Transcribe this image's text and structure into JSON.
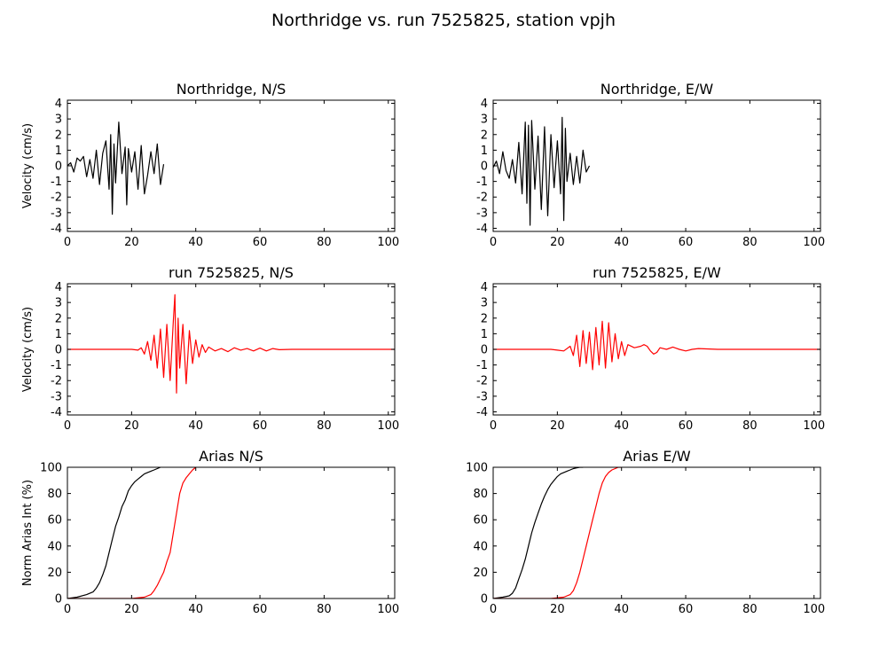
{
  "figure": {
    "title": "Northridge vs. run 7525825, station vpjh"
  },
  "colors": {
    "observed": "#000000",
    "simulated": "#ff0000"
  },
  "chart_data": [
    {
      "type": "line",
      "title": "Northridge, N/S",
      "xlabel": "",
      "ylabel": "Velocity (cm/s)",
      "xlim": [
        0,
        102
      ],
      "ylim": [
        -4.2,
        4.2
      ],
      "xticks": [
        0,
        20,
        40,
        60,
        80,
        100
      ],
      "yticks": [
        -4,
        -3,
        -2,
        -1,
        0,
        1,
        2,
        3,
        4
      ],
      "series": [
        {
          "color": "#000000",
          "x": [
            0,
            1,
            2,
            3,
            4,
            5,
            6,
            7,
            8,
            9,
            10,
            11,
            12,
            13,
            13.5,
            14,
            14.5,
            15,
            16,
            17,
            18,
            18.5,
            19,
            20,
            21,
            22,
            23,
            24,
            25,
            26,
            27,
            28,
            29,
            30
          ],
          "y": [
            0.0,
            0.2,
            -0.4,
            0.5,
            0.3,
            0.6,
            -0.7,
            0.4,
            -0.8,
            1.0,
            -1.2,
            0.8,
            1.6,
            -1.5,
            2.0,
            -3.1,
            1.4,
            -1.1,
            2.8,
            -0.5,
            1.2,
            -2.5,
            1.1,
            -0.4,
            0.9,
            -1.5,
            1.3,
            -1.8,
            -0.6,
            0.9,
            -0.5,
            1.4,
            -1.2,
            0.1
          ]
        }
      ]
    },
    {
      "type": "line",
      "title": "Northridge, E/W",
      "xlabel": "",
      "ylabel": "",
      "xlim": [
        0,
        102
      ],
      "ylim": [
        -4.2,
        4.2
      ],
      "xticks": [
        0,
        20,
        40,
        60,
        80,
        100
      ],
      "yticks": [
        -4,
        -3,
        -2,
        -1,
        0,
        1,
        2,
        3,
        4
      ],
      "series": [
        {
          "color": "#000000",
          "x": [
            0,
            1,
            2,
            3,
            4,
            5,
            6,
            7,
            8,
            9,
            10,
            10.5,
            11,
            11.5,
            12,
            13,
            14,
            15,
            16,
            17,
            18,
            19,
            20,
            21,
            21.5,
            22,
            22.5,
            23,
            24,
            25,
            26,
            27,
            28,
            29,
            30
          ],
          "y": [
            -0.1,
            0.3,
            -0.5,
            0.9,
            -0.3,
            -0.8,
            0.4,
            -1.1,
            1.5,
            -1.8,
            2.8,
            -2.4,
            2.6,
            -3.8,
            2.9,
            -1.5,
            1.9,
            -2.8,
            2.5,
            -3.2,
            2.0,
            -1.4,
            1.6,
            -1.8,
            3.1,
            -3.5,
            2.4,
            -1.0,
            0.8,
            -1.2,
            0.6,
            -1.1,
            1.0,
            -0.4,
            0.0
          ]
        }
      ]
    },
    {
      "type": "line",
      "title": "run 7525825, N/S",
      "xlabel": "",
      "ylabel": "Velocity (cm/s)",
      "xlim": [
        0,
        102
      ],
      "ylim": [
        -4.2,
        4.2
      ],
      "xticks": [
        0,
        20,
        40,
        60,
        80,
        100
      ],
      "yticks": [
        -4,
        -3,
        -2,
        -1,
        0,
        1,
        2,
        3,
        4
      ],
      "series": [
        {
          "color": "#ff0000",
          "x": [
            0,
            20,
            22,
            23,
            24,
            25,
            26,
            27,
            28,
            29,
            30,
            31,
            32,
            33,
            33.5,
            34,
            34.5,
            35,
            36,
            37,
            38,
            39,
            40,
            41,
            42,
            43,
            44,
            46,
            48,
            50,
            52,
            54,
            56,
            58,
            60,
            62,
            64,
            66,
            70,
            102
          ],
          "y": [
            0.0,
            0.0,
            -0.05,
            0.1,
            -0.3,
            0.5,
            -0.7,
            0.9,
            -1.2,
            1.3,
            -1.8,
            1.6,
            -2.0,
            1.8,
            3.5,
            -2.8,
            2.0,
            -1.2,
            1.6,
            -2.2,
            1.2,
            -0.9,
            0.6,
            -0.5,
            0.3,
            -0.2,
            0.15,
            -0.1,
            0.05,
            -0.15,
            0.1,
            -0.05,
            0.05,
            -0.1,
            0.08,
            -0.1,
            0.05,
            -0.02,
            0.0,
            0.0
          ]
        }
      ]
    },
    {
      "type": "line",
      "title": "run 7525825, E/W",
      "xlabel": "",
      "ylabel": "",
      "xlim": [
        0,
        102
      ],
      "ylim": [
        -4.2,
        4.2
      ],
      "xticks": [
        0,
        20,
        40,
        60,
        80,
        100
      ],
      "yticks": [
        -4,
        -3,
        -2,
        -1,
        0,
        1,
        2,
        3,
        4
      ],
      "series": [
        {
          "color": "#ff0000",
          "x": [
            0,
            18,
            20,
            22,
            24,
            25,
            26,
            27,
            28,
            29,
            30,
            31,
            32,
            33,
            34,
            35,
            36,
            37,
            38,
            39,
            40,
            41,
            42,
            44,
            46,
            47,
            48,
            49,
            50,
            51,
            52,
            54,
            56,
            58,
            60,
            62,
            64,
            70,
            102
          ],
          "y": [
            0.0,
            0.0,
            -0.05,
            -0.1,
            0.2,
            -0.4,
            0.9,
            -1.1,
            1.2,
            -0.9,
            1.1,
            -1.3,
            1.4,
            -1.0,
            1.8,
            -1.2,
            1.7,
            -0.8,
            1.0,
            -0.6,
            0.5,
            -0.4,
            0.3,
            0.1,
            0.2,
            0.3,
            0.2,
            -0.1,
            -0.3,
            -0.2,
            0.1,
            0.0,
            0.15,
            0.0,
            -0.1,
            0.0,
            0.05,
            0.0,
            0.0
          ]
        }
      ]
    },
    {
      "type": "line",
      "title": "Arias N/S",
      "xlabel": "",
      "ylabel": "Norm Arias Int (%)",
      "xlim": [
        0,
        102
      ],
      "ylim": [
        0,
        100
      ],
      "xticks": [
        0,
        20,
        40,
        60,
        80,
        100
      ],
      "yticks": [
        0,
        20,
        40,
        60,
        80,
        100
      ],
      "series": [
        {
          "color": "#000000",
          "x": [
            0,
            3,
            6,
            8,
            9,
            10,
            11,
            12,
            13,
            14,
            15,
            16,
            17,
            18,
            19,
            20,
            21,
            22,
            23,
            24,
            25,
            26,
            27,
            28,
            29
          ],
          "y": [
            0,
            1,
            3,
            5,
            8,
            12,
            18,
            25,
            35,
            45,
            55,
            62,
            70,
            75,
            82,
            86,
            89,
            91,
            93,
            95,
            96,
            97,
            98,
            99,
            100
          ]
        },
        {
          "color": "#ff0000",
          "x": [
            0,
            20,
            24,
            26,
            27,
            28,
            29,
            30,
            31,
            32,
            33,
            34,
            35,
            36,
            37,
            38,
            39,
            40
          ],
          "y": [
            0,
            0,
            1,
            3,
            6,
            10,
            15,
            20,
            28,
            35,
            50,
            65,
            80,
            88,
            92,
            95,
            98,
            100
          ]
        }
      ]
    },
    {
      "type": "line",
      "title": "Arias E/W",
      "xlabel": "",
      "ylabel": "",
      "xlim": [
        0,
        102
      ],
      "ylim": [
        0,
        100
      ],
      "xticks": [
        0,
        20,
        40,
        60,
        80,
        100
      ],
      "yticks": [
        0,
        20,
        40,
        60,
        80,
        100
      ],
      "series": [
        {
          "color": "#000000",
          "x": [
            0,
            3,
            5,
            6,
            7,
            8,
            9,
            10,
            11,
            12,
            13,
            14,
            15,
            16,
            17,
            18,
            19,
            20,
            21,
            22,
            23,
            24,
            25,
            26,
            27,
            28
          ],
          "y": [
            0,
            1,
            2,
            4,
            8,
            15,
            22,
            30,
            40,
            50,
            58,
            65,
            72,
            78,
            83,
            87,
            90,
            93,
            95,
            96,
            97,
            98,
            99,
            99.5,
            100,
            100
          ]
        },
        {
          "color": "#ff0000",
          "x": [
            0,
            18,
            22,
            24,
            25,
            26,
            27,
            28,
            29,
            30,
            31,
            32,
            33,
            34,
            35,
            36,
            37,
            38,
            39,
            40
          ],
          "y": [
            0,
            0,
            1,
            3,
            6,
            12,
            20,
            30,
            40,
            50,
            60,
            70,
            80,
            88,
            93,
            96,
            98,
            99,
            100,
            100
          ]
        }
      ]
    }
  ]
}
